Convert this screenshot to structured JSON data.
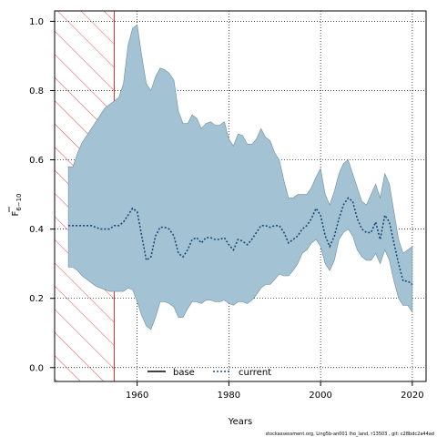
{
  "chart_data": {
    "type": "area",
    "xlabel": "Years",
    "ylabel_main": "F",
    "ylabel_sub": "6−10",
    "xlim": [
      1942,
      2023
    ],
    "ylim": [
      -0.04,
      1.03
    ],
    "x_ticks": [
      1960,
      1980,
      2000,
      2020
    ],
    "y_ticks": [
      0.0,
      0.2,
      0.4,
      0.6,
      0.8,
      1.0
    ],
    "y_tick_labels": [
      "0.0",
      "0.2",
      "0.4",
      "0.6",
      "0.8",
      "1.0"
    ],
    "grid": true,
    "legend_position": "bottom",
    "hatched_region": {
      "x_start": 1942,
      "x_end": 1955,
      "color": "#dd3333"
    },
    "band_color": "#a3c3d4",
    "series": [
      {
        "name": "base",
        "style": "solid",
        "color": "#000000",
        "x": [],
        "values": []
      },
      {
        "name": "current",
        "style": "dotted",
        "color": "#1a4a7a",
        "x": [
          1945,
          1946,
          1947,
          1948,
          1949,
          1950,
          1951,
          1952,
          1953,
          1954,
          1955,
          1956,
          1957,
          1958,
          1959,
          1960,
          1961,
          1962,
          1963,
          1964,
          1965,
          1966,
          1967,
          1968,
          1969,
          1970,
          1971,
          1972,
          1973,
          1974,
          1975,
          1976,
          1977,
          1978,
          1979,
          1980,
          1981,
          1982,
          1983,
          1984,
          1985,
          1986,
          1987,
          1988,
          1989,
          1990,
          1991,
          1992,
          1993,
          1994,
          1995,
          1996,
          1997,
          1998,
          1999,
          2000,
          2001,
          2002,
          2003,
          2004,
          2005,
          2006,
          2007,
          2008,
          2009,
          2010,
          2011,
          2012,
          2013,
          2014,
          2015,
          2016,
          2017,
          2018,
          2019,
          2020
        ],
        "values": [
          0.41,
          0.41,
          0.41,
          0.41,
          0.41,
          0.41,
          0.405,
          0.4,
          0.4,
          0.4,
          0.41,
          0.41,
          0.42,
          0.44,
          0.46,
          0.45,
          0.38,
          0.31,
          0.32,
          0.38,
          0.405,
          0.405,
          0.4,
          0.38,
          0.33,
          0.32,
          0.34,
          0.37,
          0.375,
          0.36,
          0.375,
          0.375,
          0.37,
          0.37,
          0.375,
          0.355,
          0.34,
          0.37,
          0.365,
          0.355,
          0.37,
          0.39,
          0.41,
          0.41,
          0.405,
          0.41,
          0.41,
          0.39,
          0.36,
          0.37,
          0.38,
          0.4,
          0.41,
          0.43,
          0.46,
          0.44,
          0.38,
          0.35,
          0.38,
          0.43,
          0.47,
          0.49,
          0.48,
          0.43,
          0.4,
          0.39,
          0.39,
          0.42,
          0.37,
          0.44,
          0.42,
          0.36,
          0.3,
          0.25,
          0.25,
          0.24
        ]
      }
    ],
    "band": {
      "x": [
        1945,
        1946,
        1947,
        1948,
        1949,
        1950,
        1951,
        1952,
        1953,
        1954,
        1955,
        1956,
        1957,
        1958,
        1959,
        1960,
        1961,
        1962,
        1963,
        1964,
        1965,
        1966,
        1967,
        1968,
        1969,
        1970,
        1971,
        1972,
        1973,
        1974,
        1975,
        1976,
        1977,
        1978,
        1979,
        1980,
        1981,
        1982,
        1983,
        1984,
        1985,
        1986,
        1987,
        1988,
        1989,
        1990,
        1991,
        1992,
        1993,
        1994,
        1995,
        1996,
        1997,
        1998,
        1999,
        2000,
        2001,
        2002,
        2003,
        2004,
        2005,
        2006,
        2007,
        2008,
        2009,
        2010,
        2011,
        2012,
        2013,
        2014,
        2015,
        2016,
        2017,
        2018,
        2019,
        2020
      ],
      "upper": [
        0.58,
        0.58,
        0.62,
        0.65,
        0.67,
        0.69,
        0.71,
        0.73,
        0.75,
        0.76,
        0.77,
        0.78,
        0.82,
        0.93,
        0.98,
        0.99,
        0.9,
        0.82,
        0.8,
        0.84,
        0.865,
        0.86,
        0.85,
        0.83,
        0.74,
        0.705,
        0.705,
        0.73,
        0.72,
        0.69,
        0.705,
        0.71,
        0.7,
        0.7,
        0.71,
        0.66,
        0.64,
        0.675,
        0.67,
        0.645,
        0.645,
        0.66,
        0.69,
        0.665,
        0.655,
        0.62,
        0.6,
        0.54,
        0.49,
        0.49,
        0.5,
        0.5,
        0.5,
        0.52,
        0.55,
        0.575,
        0.5,
        0.47,
        0.51,
        0.56,
        0.59,
        0.6,
        0.56,
        0.52,
        0.48,
        0.47,
        0.5,
        0.53,
        0.49,
        0.56,
        0.53,
        0.45,
        0.37,
        0.33,
        0.34,
        0.35
      ],
      "lower": [
        0.29,
        0.29,
        0.28,
        0.265,
        0.255,
        0.245,
        0.235,
        0.23,
        0.225,
        0.22,
        0.22,
        0.22,
        0.22,
        0.23,
        0.225,
        0.19,
        0.15,
        0.12,
        0.11,
        0.145,
        0.19,
        0.19,
        0.185,
        0.175,
        0.145,
        0.145,
        0.17,
        0.19,
        0.19,
        0.185,
        0.195,
        0.195,
        0.19,
        0.19,
        0.195,
        0.185,
        0.18,
        0.19,
        0.19,
        0.185,
        0.195,
        0.21,
        0.23,
        0.24,
        0.24,
        0.255,
        0.27,
        0.265,
        0.265,
        0.28,
        0.3,
        0.33,
        0.34,
        0.36,
        0.37,
        0.35,
        0.3,
        0.28,
        0.31,
        0.37,
        0.39,
        0.4,
        0.38,
        0.34,
        0.32,
        0.31,
        0.31,
        0.33,
        0.3,
        0.34,
        0.31,
        0.25,
        0.2,
        0.18,
        0.18,
        0.16
      ]
    }
  },
  "footer": "stockassessment.org,  Ling5b-an001  lho_land,  r13503 ,  git:  c28bdc2a44ad"
}
